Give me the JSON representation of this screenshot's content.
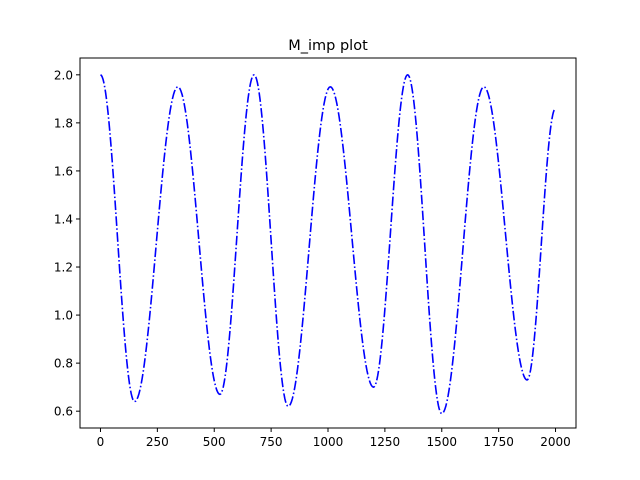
{
  "chart_data": {
    "type": "line",
    "title": "M_imp plot",
    "xlabel": "",
    "ylabel": "",
    "xlim": [
      -90,
      2090
    ],
    "ylim": [
      0.53,
      2.07
    ],
    "x_ticks": [
      0,
      250,
      500,
      750,
      1000,
      1250,
      1500,
      1750,
      2000
    ],
    "x_tick_labels": [
      "0",
      "250",
      "500",
      "750",
      "1000",
      "1250",
      "1500",
      "1750",
      "2000"
    ],
    "y_ticks": [
      0.6,
      0.8,
      1.0,
      1.2,
      1.4,
      1.6,
      1.8,
      2.0
    ],
    "y_tick_labels": [
      "0.6",
      "0.8",
      "1.0",
      "1.2",
      "1.4",
      "1.6",
      "1.8",
      "2.0"
    ],
    "grid": false,
    "series": [
      {
        "color": "#0000ff",
        "line_style": "dash-dot",
        "x": [
          0,
          150,
          340,
          525,
          675,
          825,
          1010,
          1200,
          1350,
          1500,
          1685,
          1875,
          2000
        ],
        "y": [
          2.0,
          0.64,
          1.95,
          0.67,
          2.0,
          0.62,
          1.95,
          0.7,
          2.0,
          0.59,
          1.95,
          0.73,
          1.86
        ]
      }
    ]
  }
}
